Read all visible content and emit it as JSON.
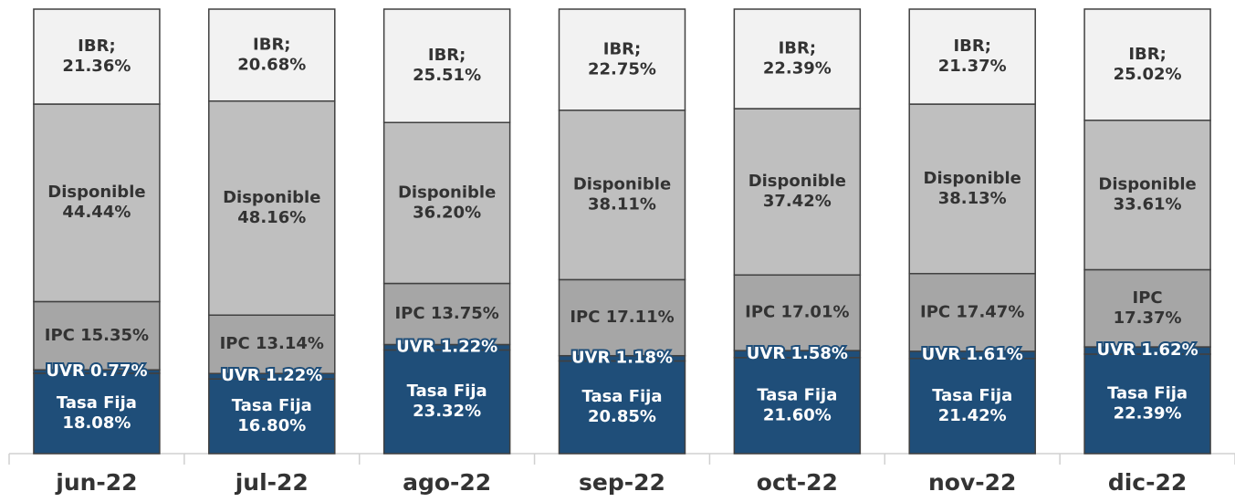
{
  "chart_data": {
    "type": "stacked_bar",
    "categories": [
      "jun-22",
      "jul-22",
      "ago-22",
      "sep-22",
      "oct-22",
      "nov-22",
      "dic-22"
    ],
    "ylim": [
      0,
      100
    ],
    "series": [
      {
        "name": "Tasa Fija",
        "color": "#1f4e79",
        "label_color": "#ffffff",
        "values": [
          18.08,
          16.8,
          23.32,
          20.85,
          21.6,
          21.42,
          22.39
        ],
        "value_labels": [
          "Tasa Fija\n18.08%",
          "Tasa Fija\n16.80%",
          "Tasa Fija\n23.32%",
          "Tasa Fija\n20.85%",
          "Tasa Fija\n21.60%",
          "Tasa Fija\n21.42%",
          "Tasa Fija\n22.39%"
        ]
      },
      {
        "name": "UVR",
        "color": "#1f4e79",
        "label_color": "#ffffff",
        "values": [
          0.77,
          1.22,
          1.22,
          1.18,
          1.58,
          1.61,
          1.62
        ],
        "value_labels": [
          "UVR 0.77%",
          "UVR 1.22%",
          "UVR 1.22%",
          "UVR 1.18%",
          "UVR 1.58%",
          "UVR 1.61%",
          "UVR 1.62%"
        ]
      },
      {
        "name": "IPC",
        "color": "#a6a6a6",
        "label_color": "#333333",
        "values": [
          15.35,
          13.14,
          13.75,
          17.11,
          17.01,
          17.47,
          17.37
        ],
        "value_labels": [
          "IPC 15.35%",
          "IPC 13.14%",
          "IPC 13.75%",
          "IPC 17.11%",
          "IPC 17.01%",
          "IPC 17.47%",
          "IPC\n17.37%"
        ]
      },
      {
        "name": "Disponible",
        "color": "#bfbfbf",
        "label_color": "#333333",
        "values": [
          44.44,
          48.16,
          36.2,
          38.11,
          37.42,
          38.13,
          33.61
        ],
        "value_labels": [
          "Disponible\n44.44%",
          "Disponible\n48.16%",
          "Disponible\n36.20%",
          "Disponible\n38.11%",
          "Disponible\n37.42%",
          "Disponible\n38.13%",
          "Disponible\n33.61%"
        ]
      },
      {
        "name": "IBR",
        "color": "#f2f2f2",
        "label_color": "#333333",
        "values": [
          21.36,
          20.68,
          25.51,
          22.75,
          22.39,
          21.37,
          25.02
        ],
        "value_labels": [
          "IBR;\n21.36%",
          "IBR;\n20.68%",
          "IBR;\n25.51%",
          "IBR;\n22.75%",
          "IBR;\n22.39%",
          "IBR;\n21.37%",
          "IBR;\n25.02%"
        ]
      }
    ]
  }
}
